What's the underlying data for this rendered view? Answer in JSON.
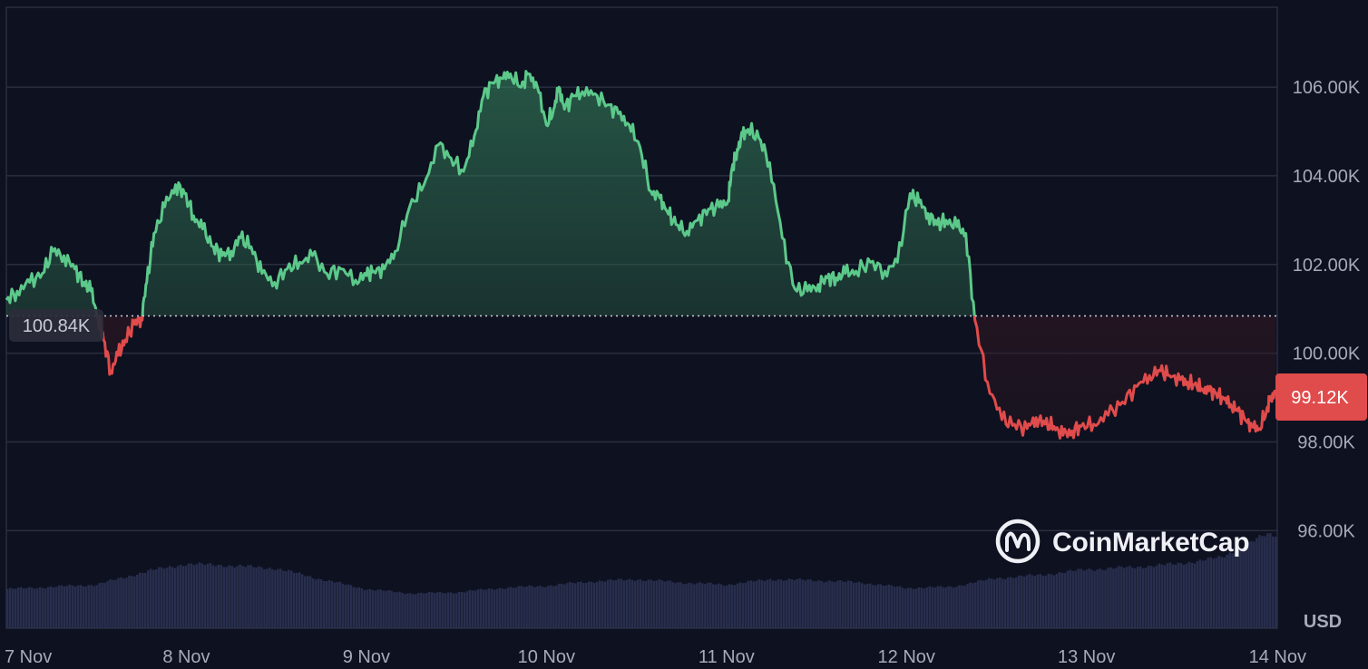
{
  "brand": {
    "name": "CoinMarketCap",
    "logo_icon": "coinmarketcap-logo-icon"
  },
  "colors": {
    "background": "#0e1120",
    "grid": "#2a2e3f",
    "up": "#5cc98a",
    "down": "#e04b4b",
    "volume": "#2b3252",
    "axis_text": "#a7abb8",
    "baseline_badge_bg": "#2a2d3a",
    "current_badge_bg": "#e04b4b"
  },
  "chart_data": {
    "type": "area",
    "currency_label": "USD",
    "x_tick_labels": [
      "7 Nov",
      "8 Nov",
      "9 Nov",
      "10 Nov",
      "11 Nov",
      "12 Nov",
      "13 Nov",
      "14 Nov"
    ],
    "y_tick_values": [
      96000,
      98000,
      100000,
      102000,
      104000,
      106000
    ],
    "y_tick_labels": [
      "96.00K",
      "98.00K",
      "100.00K",
      "102.00K",
      "104.00K",
      "106.00K"
    ],
    "ylim": [
      93800,
      107800
    ],
    "xlim_days": [
      0,
      7.06
    ],
    "grid": true,
    "baseline": {
      "value": 100840,
      "label": "100.84K"
    },
    "current": {
      "value": 99120,
      "label": "99.12K"
    },
    "series": [
      {
        "x_days": [
          0,
          0.06,
          0.13,
          0.2,
          0.26,
          0.32,
          0.38,
          0.43,
          0.47,
          0.51,
          0.54,
          0.58,
          0.62,
          0.66,
          0.71,
          0.75,
          0.78,
          0.82,
          0.88,
          0.94,
          0.99,
          1.04,
          1.09,
          1.15,
          1.2,
          1.25,
          1.3,
          1.36,
          1.42,
          1.49,
          1.56,
          1.63,
          1.7,
          1.78,
          1.86,
          1.94,
          2.0,
          2.04,
          2.1,
          2.16,
          2.24,
          2.32,
          2.4,
          2.47,
          2.54,
          2.6,
          2.65,
          2.7,
          2.75,
          2.8,
          2.86,
          2.9,
          2.95,
          3.0,
          3.04,
          3.07,
          3.1,
          3.15,
          3.2,
          3.27,
          3.34,
          3.4,
          3.46,
          3.52,
          3.58,
          3.63,
          3.67,
          3.72,
          3.78,
          3.84,
          3.9,
          3.96,
          4.01,
          4.03,
          4.06,
          4.09,
          4.12,
          4.18,
          4.24,
          4.31,
          4.38,
          4.45,
          4.51,
          4.56,
          4.61,
          4.66,
          4.72,
          4.8,
          4.88,
          4.95,
          5.02,
          5.07,
          5.12,
          5.17,
          5.22,
          5.28,
          5.33,
          5.38,
          5.45,
          5.53,
          5.6,
          5.67,
          5.72,
          5.77,
          5.82,
          5.87,
          5.92,
          5.97,
          6.04,
          6.12,
          6.2,
          6.28,
          6.35,
          6.41,
          6.46,
          6.52,
          6.56,
          6.6,
          6.64,
          6.68,
          6.72,
          6.76,
          6.8,
          6.84,
          6.88,
          6.92,
          6.96,
          7.0,
          7.02,
          7.05
        ],
        "values": [
          101200,
          101400,
          101600,
          101800,
          102300,
          102200,
          101900,
          101600,
          101400,
          100800,
          100300,
          99600,
          99950,
          100300,
          100650,
          100800,
          101600,
          102700,
          103300,
          103800,
          103600,
          103100,
          102800,
          102400,
          102200,
          102300,
          102600,
          102400,
          101800,
          101600,
          101900,
          102050,
          102200,
          101800,
          101900,
          101650,
          101750,
          101850,
          101900,
          102300,
          103300,
          103800,
          104700,
          104400,
          104100,
          104900,
          105800,
          106100,
          106200,
          106300,
          106000,
          106300,
          106000,
          105150,
          105500,
          106000,
          105500,
          105800,
          105900,
          105850,
          105600,
          105400,
          105150,
          104650,
          103650,
          103500,
          103200,
          102900,
          102750,
          103000,
          103250,
          103300,
          103450,
          104150,
          104600,
          104900,
          105050,
          104850,
          104300,
          102600,
          101450,
          101400,
          101550,
          101700,
          101700,
          101800,
          101850,
          102050,
          101850,
          102050,
          103600,
          103400,
          103150,
          102900,
          103000,
          102850,
          102700,
          100750,
          99350,
          98500,
          98400,
          98300,
          98550,
          98400,
          98350,
          98150,
          98250,
          98350,
          98400,
          98600,
          98900,
          99250,
          99500,
          99600,
          99500,
          99400,
          99350,
          99300,
          99200,
          99150,
          99100,
          99000,
          98850,
          98700,
          98500,
          98350,
          98300,
          98700,
          98950,
          99120
        ]
      }
    ],
    "volume": {
      "x_days": [
        0,
        0.5,
        0.8,
        1.0,
        1.2,
        1.5,
        1.75,
        2.0,
        2.25,
        2.5,
        2.75,
        3.0,
        3.25,
        3.5,
        3.75,
        4.0,
        4.25,
        4.5,
        4.75,
        5.0,
        5.25,
        5.5,
        5.75,
        6.0,
        6.25,
        6.5,
        6.75,
        7.0,
        7.06
      ],
      "relative": [
        0.36,
        0.4,
        0.53,
        0.59,
        0.58,
        0.55,
        0.45,
        0.36,
        0.32,
        0.33,
        0.37,
        0.39,
        0.43,
        0.45,
        0.42,
        0.4,
        0.45,
        0.44,
        0.42,
        0.37,
        0.38,
        0.46,
        0.49,
        0.54,
        0.56,
        0.59,
        0.65,
        0.86,
        0.86
      ]
    }
  }
}
